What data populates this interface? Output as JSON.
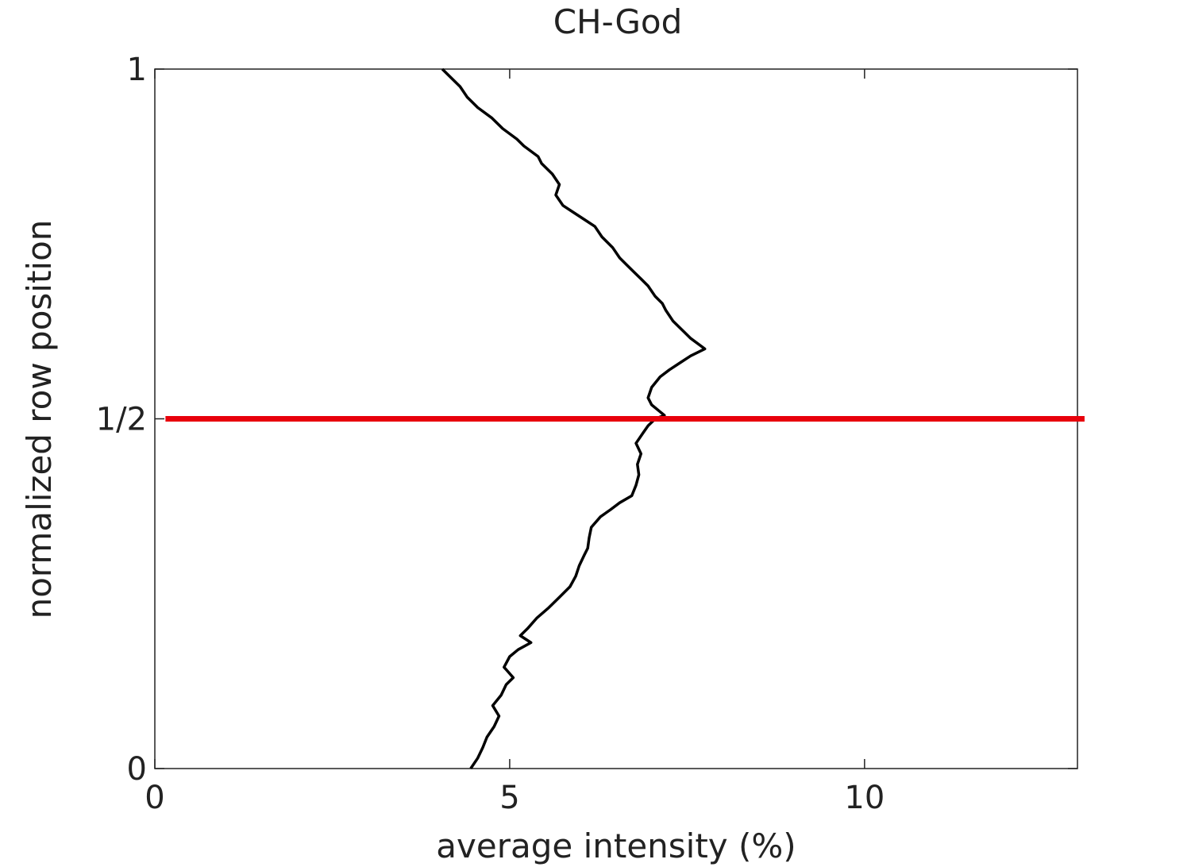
{
  "chart_data": {
    "type": "line",
    "title": "CH-God",
    "xlabel": "average intensity (%)",
    "ylabel": "normalized row position",
    "xlim": [
      0,
      13
    ],
    "ylim": [
      0,
      1
    ],
    "grid": false,
    "x_ticks": [
      {
        "value": 0,
        "label": "0"
      },
      {
        "value": 5,
        "label": "5"
      },
      {
        "value": 10,
        "label": "10"
      }
    ],
    "y_ticks": [
      {
        "value": 0,
        "label": "0"
      },
      {
        "value": 0.5,
        "label": "1/2"
      },
      {
        "value": 1,
        "label": "1"
      }
    ],
    "reference_line": {
      "y": 0.5,
      "x_start": 0.15,
      "x_end": 13.1,
      "color": "#e8000b"
    },
    "colors": {
      "profile": "#000000",
      "reference": "#e8000b",
      "axes": "#222222"
    },
    "series": [
      {
        "x": [
          4.45,
          4.55,
          4.62,
          4.68,
          4.78,
          4.85,
          4.76,
          4.88,
          4.95,
          5.05,
          4.92,
          5.0,
          5.12,
          5.3,
          5.15,
          5.25,
          5.38,
          5.55,
          5.7,
          5.85,
          5.93,
          5.98,
          6.05,
          6.1,
          6.12,
          6.15,
          6.28,
          6.42,
          6.55,
          6.72,
          6.78,
          6.82,
          6.8,
          6.85,
          6.78,
          6.88,
          6.95,
          7.05,
          7.18,
          7.12,
          7.0,
          6.95,
          7.0,
          7.12,
          7.25,
          7.4,
          7.55,
          7.75,
          7.55,
          7.45,
          7.3,
          7.2,
          7.15,
          7.05,
          6.95,
          6.85,
          6.75,
          6.65,
          6.55,
          6.45,
          6.3,
          6.2,
          6.05,
          5.9,
          5.75,
          5.65,
          5.7,
          5.6,
          5.45,
          5.4,
          5.2,
          5.1,
          4.9,
          4.75,
          4.55,
          4.4,
          4.3,
          4.15,
          4.05
        ],
        "y": [
          0.0,
          0.015,
          0.03,
          0.045,
          0.06,
          0.075,
          0.09,
          0.105,
          0.12,
          0.13,
          0.145,
          0.16,
          0.17,
          0.18,
          0.19,
          0.2,
          0.215,
          0.23,
          0.245,
          0.26,
          0.275,
          0.29,
          0.305,
          0.315,
          0.33,
          0.345,
          0.36,
          0.37,
          0.38,
          0.39,
          0.405,
          0.42,
          0.435,
          0.45,
          0.465,
          0.48,
          0.49,
          0.5,
          0.505,
          0.51,
          0.52,
          0.53,
          0.545,
          0.56,
          0.57,
          0.58,
          0.59,
          0.6,
          0.615,
          0.625,
          0.64,
          0.655,
          0.665,
          0.675,
          0.69,
          0.7,
          0.71,
          0.72,
          0.73,
          0.745,
          0.76,
          0.775,
          0.785,
          0.795,
          0.805,
          0.82,
          0.835,
          0.85,
          0.865,
          0.875,
          0.89,
          0.9,
          0.915,
          0.93,
          0.945,
          0.96,
          0.975,
          0.99,
          1.0
        ]
      }
    ]
  }
}
